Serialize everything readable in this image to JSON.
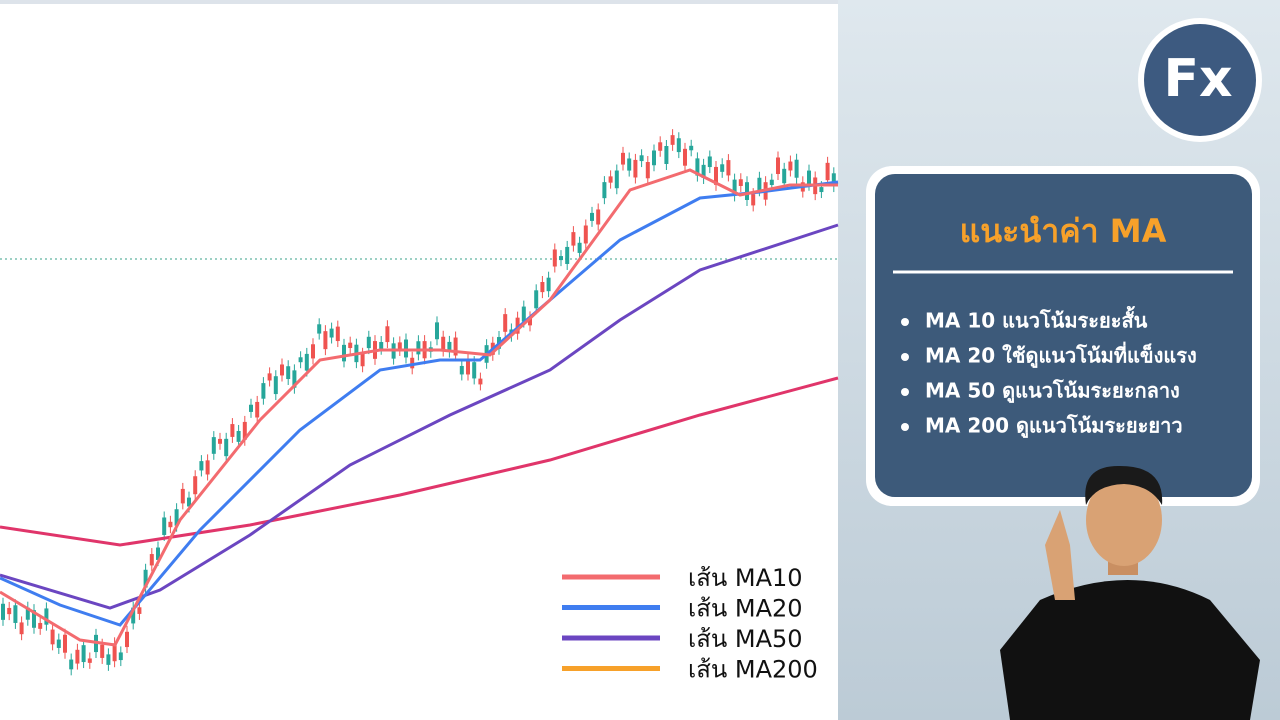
{
  "logo": "Fx",
  "legend": [
    {
      "name": "เส้น MA10",
      "color": "#f36b6f"
    },
    {
      "name": "เส้น MA20",
      "color": "#3f7df0"
    },
    {
      "name": "เส้น MA50",
      "color": "#6b46c1"
    },
    {
      "name": "เส้น MA200",
      "color": "#f7a12a"
    }
  ],
  "panel": {
    "title": "แนะนำค่า MA",
    "items": [
      "MA 10 แนวโน้มระยะสั้น",
      "MA 20 ใช้ดูแนวโน้มที่แข็งแรง",
      "MA 50 ดูแนวโน้มระยะกลาง",
      "MA 200 ดูแนวโน้มระยะยาว"
    ]
  }
}
